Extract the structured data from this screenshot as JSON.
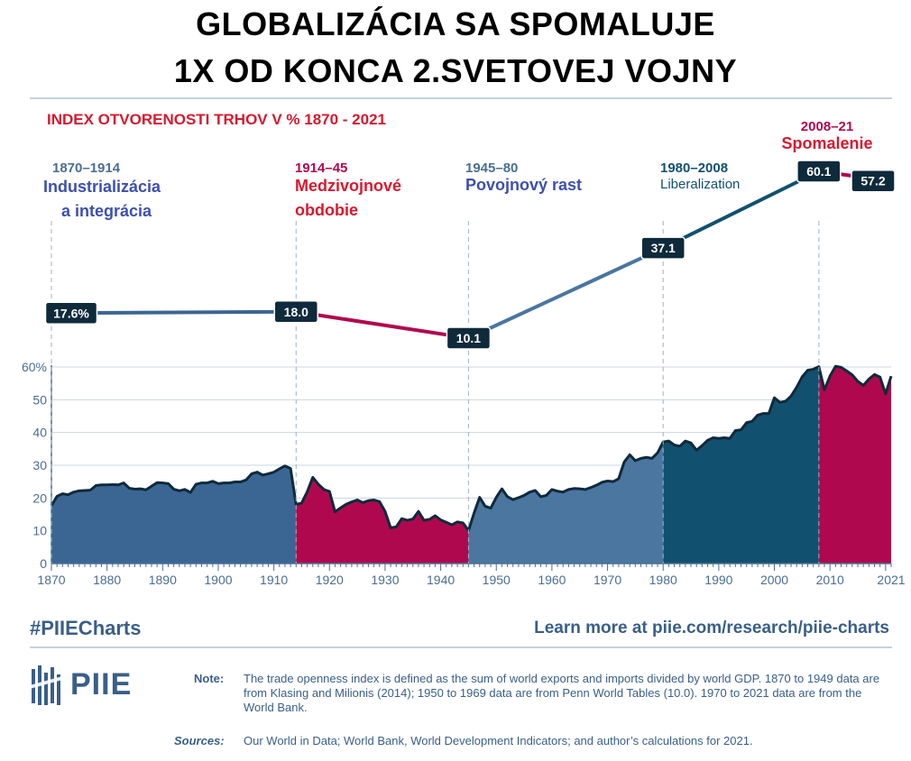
{
  "header": {
    "title_line1": "GLOBALIZÁCIA SA SPOMALUJE",
    "title_line2": "1X OD KONCA 2.SVETOVEJ VOJNY"
  },
  "chart_data": {
    "type": "area",
    "title": "INDEX OTVORENOSTI TRHOV V % 1870 - 2021",
    "xlabel": "",
    "ylabel": "",
    "xlim": [
      1870,
      2021
    ],
    "ylim": [
      0,
      60
    ],
    "y_ticks": [
      0,
      10,
      20,
      30,
      40,
      50,
      60
    ],
    "y_tick_labels": [
      "0",
      "10",
      "20",
      "30",
      "40",
      "50",
      "60%"
    ],
    "x_ticks": [
      1870,
      1880,
      1890,
      1900,
      1910,
      1920,
      1930,
      1940,
      1950,
      1960,
      1970,
      1980,
      1990,
      2000,
      2010,
      2021
    ],
    "x_tick_labels": [
      "1870",
      "1880",
      "1890",
      "1900",
      "1910",
      "1920",
      "1930",
      "1940",
      "1950",
      "1960",
      "1970",
      "1980",
      "1990",
      "2000",
      "2010",
      "2021"
    ],
    "grid": true,
    "series": [
      {
        "x": [
          1870,
          1871,
          1872,
          1873,
          1874,
          1875,
          1876,
          1877,
          1878,
          1879,
          1880,
          1881,
          1882,
          1883,
          1884,
          1885,
          1886,
          1887,
          1888,
          1889,
          1890,
          1891,
          1892,
          1893,
          1894,
          1895,
          1896,
          1897,
          1898,
          1899,
          1900,
          1901,
          1902,
          1903,
          1904,
          1905,
          1906,
          1907,
          1908,
          1909,
          1910,
          1911,
          1912,
          1913,
          1914,
          1915,
          1916,
          1917,
          1918,
          1919,
          1920,
          1921,
          1922,
          1923,
          1924,
          1925,
          1926,
          1927,
          1928,
          1929,
          1930,
          1931,
          1932,
          1933,
          1934,
          1935,
          1936,
          1937,
          1938,
          1939,
          1940,
          1941,
          1942,
          1943,
          1944,
          1945,
          1946,
          1947,
          1948,
          1949,
          1950,
          1951,
          1952,
          1953,
          1954,
          1955,
          1956,
          1957,
          1958,
          1959,
          1960,
          1961,
          1962,
          1963,
          1964,
          1965,
          1966,
          1967,
          1968,
          1969,
          1970,
          1971,
          1972,
          1973,
          1974,
          1975,
          1976,
          1977,
          1978,
          1979,
          1980,
          1981,
          1982,
          1983,
          1984,
          1985,
          1986,
          1987,
          1988,
          1989,
          1990,
          1991,
          1992,
          1993,
          1994,
          1995,
          1996,
          1997,
          1998,
          1999,
          2000,
          2001,
          2002,
          2003,
          2004,
          2005,
          2006,
          2007,
          2008,
          2009,
          2010,
          2011,
          2012,
          2013,
          2014,
          2015,
          2016,
          2017,
          2018,
          2019,
          2020,
          2021
        ],
        "values": [
          17.6,
          20.5,
          21.3,
          21.0,
          21.8,
          22.2,
          22.3,
          22.4,
          23.8,
          24.0,
          24.0,
          24.1,
          24.0,
          24.6,
          23.0,
          22.7,
          22.8,
          22.5,
          23.6,
          24.7,
          24.6,
          24.4,
          22.7,
          22.2,
          22.6,
          21.7,
          24.2,
          24.6,
          24.6,
          25.1,
          24.4,
          24.6,
          24.6,
          24.9,
          24.9,
          25.5,
          27.4,
          27.9,
          27.0,
          27.4,
          27.9,
          28.9,
          29.8,
          29.0,
          18.0,
          18.5,
          21.9,
          26.3,
          24.2,
          22.6,
          22.0,
          15.8,
          17.0,
          18.1,
          18.8,
          19.4,
          18.6,
          19.2,
          19.4,
          18.9,
          15.9,
          10.9,
          11.2,
          13.7,
          13.2,
          13.6,
          15.9,
          13.2,
          13.5,
          14.6,
          13.3,
          12.6,
          11.8,
          12.7,
          12.4,
          10.1,
          15.4,
          20.2,
          17.5,
          16.9,
          20.2,
          22.8,
          20.4,
          19.5,
          20.1,
          20.8,
          21.8,
          22.3,
          20.4,
          20.8,
          22.6,
          22.1,
          21.8,
          22.6,
          22.9,
          22.8,
          22.6,
          23.2,
          23.9,
          24.8,
          25.2,
          25.0,
          25.9,
          31.0,
          33.2,
          31.4,
          32.1,
          32.4,
          32.1,
          33.8,
          37.1,
          37.4,
          36.2,
          35.8,
          37.4,
          36.8,
          34.6,
          36.0,
          37.6,
          38.4,
          38.2,
          38.4,
          38.2,
          40.6,
          40.8,
          43.0,
          43.4,
          45.3,
          45.8,
          45.8,
          50.6,
          49.2,
          49.5,
          51.1,
          53.8,
          57.0,
          59.0,
          59.3,
          60.1,
          53.0,
          57.2,
          60.2,
          59.9,
          58.8,
          57.6,
          55.6,
          54.4,
          56.3,
          57.7,
          56.9,
          51.8,
          57.2
        ]
      }
    ],
    "periods": [
      {
        "range": "1870–1914",
        "name_line1": "Industrializácia",
        "name_line2": "a integrácia",
        "start": 1870,
        "end": 1914,
        "start_value": 17.6,
        "end_value": 18.0,
        "start_label": "17.6%",
        "end_label": "18.0",
        "color": "#3b6694"
      },
      {
        "range": "1914–45",
        "name_line1": "Medzivojnové",
        "name_line2": "obdobie",
        "start": 1914,
        "end": 1945,
        "start_value": 18.0,
        "end_value": 10.1,
        "end_label": "10.1",
        "color": "#b0084e"
      },
      {
        "range": "1945–80",
        "name_line1": "Povojnový rast",
        "name_line2": "",
        "start": 1945,
        "end": 1980,
        "start_value": 10.1,
        "end_value": 37.1,
        "end_label": "37.1",
        "color": "#4a76a0"
      },
      {
        "range": "1980–2008",
        "name_line1": "Liberalization",
        "name_line2": "",
        "start": 1980,
        "end": 2008,
        "start_value": 37.1,
        "end_value": 60.1,
        "end_label": "60.1",
        "color": "#12506f"
      },
      {
        "range": "2008–21",
        "name_line1": "Spomalenie",
        "name_line2": "",
        "start": 2008,
        "end": 2021,
        "start_value": 60.1,
        "end_value": 57.2,
        "end_label": "57.2",
        "color": "#b0084e"
      }
    ]
  },
  "footer": {
    "hashtag": "#PIIECharts",
    "link": "Learn more at piie.com/research/piie-charts",
    "logo_text": "PIIE",
    "note_label": "Note:",
    "note_text": "The trade openness index is defined as the sum of world exports and imports divided by world GDP. 1870 to 1949 data are from Klasing and Milionis (2014); 1950 to 1969 data are from Penn World Tables (10.0). 1970 to 2021 data are from the World Bank.",
    "sources_label": "Sources:",
    "sources_text": "Our World in Data; World Bank, World Development Indicators; and author’s calculations for 2021."
  },
  "colors": {
    "title_red": "#d7192f",
    "axis_text": "#4a6e92",
    "grid": "#c8d7e4",
    "dark_label_bg": "#0f2a3b",
    "footer_blue": "#3a5f87"
  }
}
